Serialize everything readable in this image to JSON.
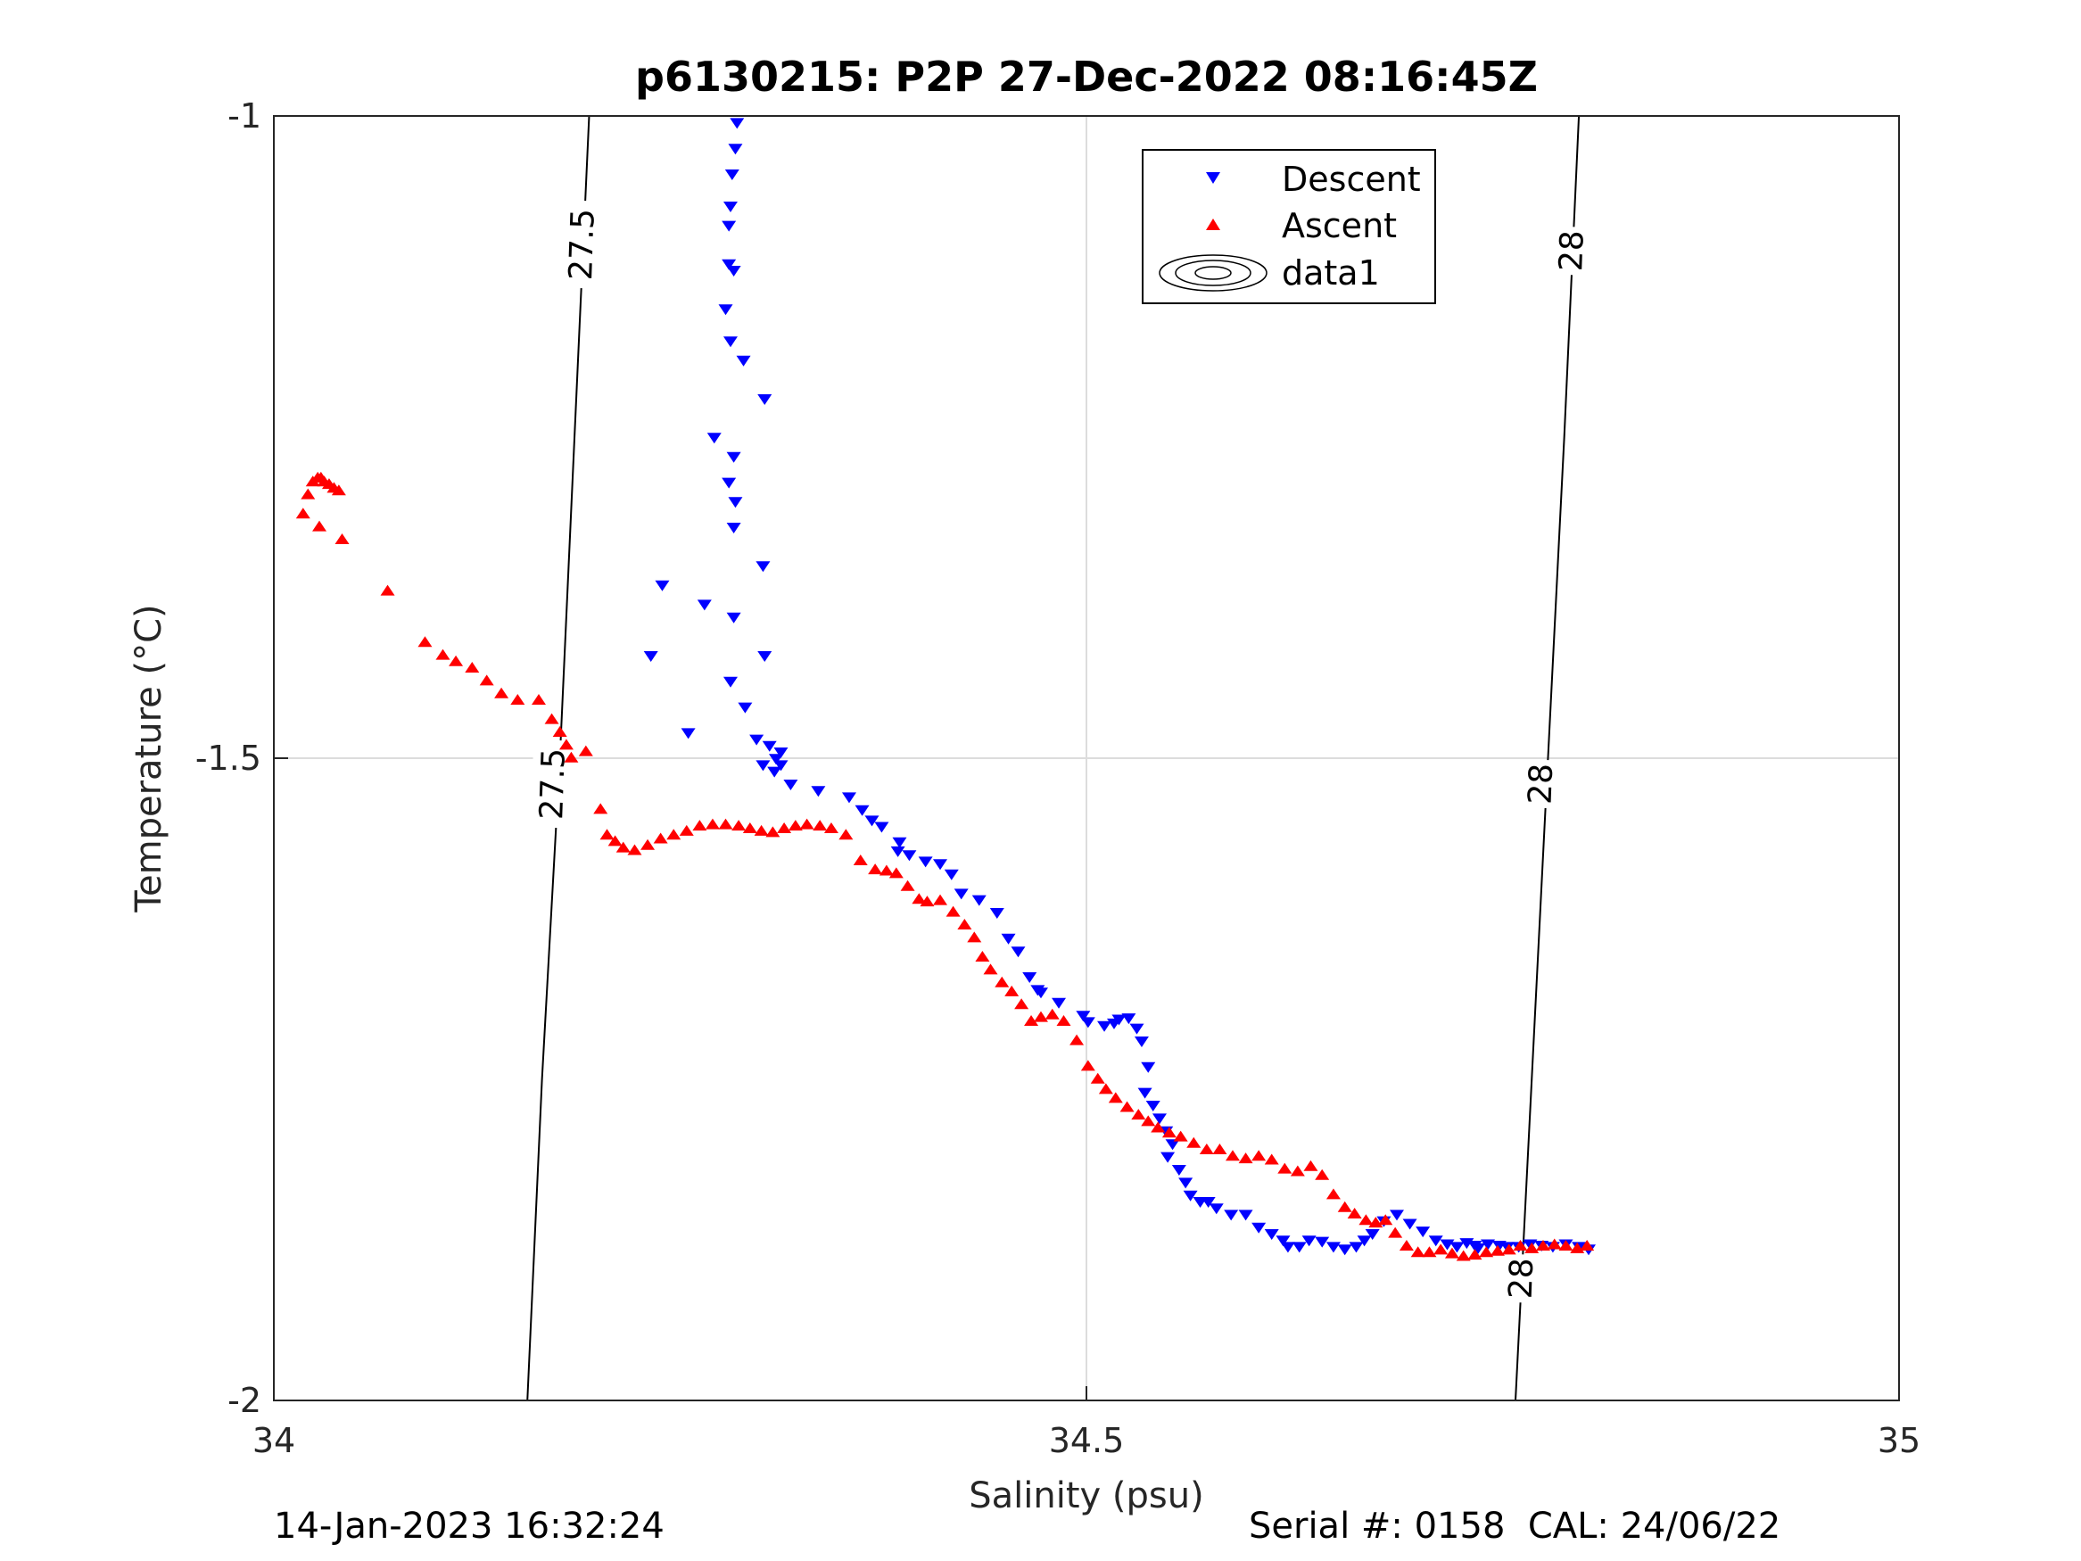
{
  "chart_data": {
    "type": "scatter",
    "title": "p6130215: P2P 27-Dec-2022 08:16:45Z",
    "xlabel": "Salinity (psu)",
    "ylabel": "Temperature (°C)",
    "xlim": [
      34,
      35
    ],
    "ylim": [
      -2,
      -1
    ],
    "x_ticks": [
      "34",
      "34.5",
      "35"
    ],
    "y_ticks": [
      "-1",
      "-1.5",
      "-2"
    ],
    "grid": true,
    "legend_position": "top-center",
    "legend": [
      "Descent",
      "Ascent",
      "data1"
    ],
    "series": [
      {
        "name": "Descent",
        "marker": "triangle-down",
        "color": "#0000ff",
        "x": [
          34.285,
          34.284,
          34.282,
          34.281,
          34.28,
          34.28,
          34.283,
          34.278,
          34.281,
          34.289,
          34.302,
          34.271,
          34.283,
          34.28,
          34.284,
          34.283,
          34.301,
          34.239,
          34.265,
          34.283,
          34.302,
          34.232,
          34.255,
          34.281,
          34.29,
          34.297,
          34.305,
          34.312,
          34.309,
          34.301,
          34.312,
          34.308,
          34.318,
          34.335,
          34.354,
          34.362,
          34.368,
          34.374,
          34.385,
          34.384,
          34.391,
          34.401,
          34.41,
          34.417,
          34.423,
          34.434,
          34.445,
          34.452,
          34.458,
          34.465,
          34.47,
          34.472,
          34.483,
          34.498,
          34.501,
          34.511,
          34.517,
          34.52,
          34.526,
          34.531,
          34.534,
          34.538,
          34.536,
          34.541,
          34.545,
          34.549,
          34.553,
          34.55,
          34.557,
          34.561,
          34.564,
          34.57,
          34.575,
          34.58,
          34.589,
          34.598,
          34.606,
          34.614,
          34.621,
          34.624,
          34.631,
          34.637,
          34.645,
          34.652,
          34.659,
          34.666,
          34.671,
          34.676,
          34.683,
          34.691,
          34.699,
          34.707,
          34.715,
          34.722,
          34.728,
          34.734,
          34.739,
          34.741,
          34.747,
          34.754,
          34.759,
          34.766,
          34.773,
          34.78,
          34.787,
          34.795,
          34.803,
          34.809
        ],
        "y": [
          -1.005,
          -1.025,
          -1.045,
          -1.07,
          -1.085,
          -1.115,
          -1.12,
          -1.15,
          -1.175,
          -1.19,
          -1.22,
          -1.25,
          -1.265,
          -1.285,
          -1.3,
          -1.32,
          -1.35,
          -1.365,
          -1.38,
          -1.39,
          -1.42,
          -1.42,
          -1.48,
          -1.44,
          -1.46,
          -1.485,
          -1.49,
          -1.495,
          -1.5,
          -1.505,
          -1.505,
          -1.51,
          -1.52,
          -1.525,
          -1.53,
          -1.54,
          -1.548,
          -1.553,
          -1.565,
          -1.572,
          -1.575,
          -1.58,
          -1.582,
          -1.59,
          -1.605,
          -1.61,
          -1.62,
          -1.64,
          -1.65,
          -1.67,
          -1.68,
          -1.682,
          -1.69,
          -1.7,
          -1.705,
          -1.708,
          -1.706,
          -1.703,
          -1.702,
          -1.71,
          -1.72,
          -1.74,
          -1.76,
          -1.77,
          -1.78,
          -1.79,
          -1.8,
          -1.81,
          -1.82,
          -1.83,
          -1.84,
          -1.845,
          -1.845,
          -1.85,
          -1.855,
          -1.855,
          -1.865,
          -1.87,
          -1.875,
          -1.88,
          -1.88,
          -1.875,
          -1.876,
          -1.88,
          -1.882,
          -1.88,
          -1.875,
          -1.87,
          -1.86,
          -1.855,
          -1.862,
          -1.868,
          -1.875,
          -1.878,
          -1.88,
          -1.877,
          -1.879,
          -1.881,
          -1.878,
          -1.879,
          -1.88,
          -1.88,
          -1.878,
          -1.879,
          -1.88,
          -1.878,
          -1.88,
          -1.882
        ]
      },
      {
        "name": "Ascent",
        "marker": "triangle-up",
        "color": "#ff0000",
        "x": [
          34.018,
          34.021,
          34.024,
          34.027,
          34.029,
          34.031,
          34.034,
          34.037,
          34.04,
          34.042,
          34.028,
          34.07,
          34.093,
          34.104,
          34.112,
          34.122,
          34.131,
          34.14,
          34.15,
          34.163,
          34.171,
          34.176,
          34.18,
          34.183,
          34.192,
          34.201,
          34.205,
          34.21,
          34.215,
          34.222,
          34.23,
          34.238,
          34.246,
          34.254,
          34.262,
          34.27,
          34.278,
          34.286,
          34.293,
          34.3,
          34.307,
          34.314,
          34.321,
          34.328,
          34.336,
          34.343,
          34.352,
          34.361,
          34.37,
          34.377,
          34.383,
          34.39,
          34.397,
          34.402,
          34.41,
          34.418,
          34.425,
          34.431,
          34.436,
          34.441,
          34.448,
          34.454,
          34.46,
          34.466,
          34.472,
          34.479,
          34.486,
          34.494,
          34.501,
          34.507,
          34.512,
          34.518,
          34.525,
          34.532,
          34.538,
          34.544,
          34.551,
          34.558,
          34.566,
          34.574,
          34.582,
          34.59,
          34.598,
          34.606,
          34.614,
          34.622,
          34.63,
          34.638,
          34.645,
          34.652,
          34.659,
          34.665,
          34.672,
          34.678,
          34.684,
          34.69,
          34.697,
          34.704,
          34.711,
          34.718,
          34.725,
          34.732,
          34.739,
          34.746,
          34.753,
          34.76,
          34.767,
          34.774,
          34.781,
          34.788,
          34.795,
          34.802,
          34.808
        ],
        "y": [
          -1.31,
          -1.295,
          -1.285,
          -1.282,
          -1.282,
          -1.285,
          -1.287,
          -1.29,
          -1.292,
          -1.33,
          -1.32,
          -1.37,
          -1.41,
          -1.42,
          -1.425,
          -1.43,
          -1.44,
          -1.45,
          -1.455,
          -1.455,
          -1.47,
          -1.48,
          -1.49,
          -1.5,
          -1.495,
          -1.54,
          -1.56,
          -1.565,
          -1.57,
          -1.572,
          -1.568,
          -1.563,
          -1.56,
          -1.557,
          -1.553,
          -1.552,
          -1.552,
          -1.553,
          -1.555,
          -1.557,
          -1.558,
          -1.555,
          -1.553,
          -1.552,
          -1.553,
          -1.555,
          -1.56,
          -1.58,
          -1.587,
          -1.588,
          -1.59,
          -1.6,
          -1.61,
          -1.612,
          -1.611,
          -1.62,
          -1.63,
          -1.64,
          -1.655,
          -1.665,
          -1.675,
          -1.682,
          -1.692,
          -1.705,
          -1.702,
          -1.7,
          -1.705,
          -1.72,
          -1.74,
          -1.75,
          -1.758,
          -1.765,
          -1.772,
          -1.778,
          -1.783,
          -1.788,
          -1.792,
          -1.795,
          -1.8,
          -1.805,
          -1.805,
          -1.81,
          -1.812,
          -1.81,
          -1.813,
          -1.82,
          -1.822,
          -1.818,
          -1.825,
          -1.84,
          -1.85,
          -1.855,
          -1.86,
          -1.862,
          -1.86,
          -1.87,
          -1.88,
          -1.885,
          -1.885,
          -1.883,
          -1.886,
          -1.888,
          -1.887,
          -1.885,
          -1.884,
          -1.883,
          -1.88,
          -1.882,
          -1.88,
          -1.879,
          -1.88,
          -1.882,
          -1.88
        ]
      }
    ],
    "contours": [
      {
        "label": "27.5",
        "x": [
          34.194,
          34.185,
          34.176,
          34.165,
          34.156
        ],
        "y": [
          -1.0,
          -1.25,
          -1.5,
          -1.75,
          -2.0
        ]
      },
      {
        "label": "28",
        "x": [
          34.803,
          34.794,
          34.784,
          34.774,
          34.764
        ],
        "y": [
          -1.0,
          -1.25,
          -1.5,
          -1.75,
          -2.0
        ]
      }
    ],
    "contour_labels": [
      {
        "text": "27.5",
        "x": 34.189,
        "y": -1.1
      },
      {
        "text": "27.5",
        "x": 34.171,
        "y": -1.52
      },
      {
        "text": "28",
        "x": 34.798,
        "y": -1.105
      },
      {
        "text": "28",
        "x": 34.779,
        "y": -1.52
      },
      {
        "text": "28",
        "x": 34.767,
        "y": -1.905
      }
    ]
  },
  "footer": {
    "left": "14-Jan-2023 16:32:24",
    "right": "Serial #: 0158  CAL: 24/06/22"
  }
}
